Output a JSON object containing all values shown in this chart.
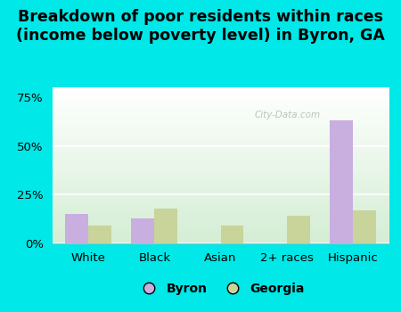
{
  "title": "Breakdown of poor residents within races\n(income below poverty level) in Byron, GA",
  "categories": [
    "White",
    "Black",
    "Asian",
    "2+ races",
    "Hispanic"
  ],
  "byron_values": [
    15,
    13,
    0,
    0,
    63
  ],
  "georgia_values": [
    9,
    18,
    9,
    14,
    17
  ],
  "byron_color": "#c9aee0",
  "georgia_color": "#c8d49a",
  "bar_width": 0.35,
  "ylim": [
    0,
    80
  ],
  "yticks": [
    0,
    25,
    50,
    75
  ],
  "yticklabels": [
    "0%",
    "25%",
    "50%",
    "75%"
  ],
  "bg_top_left": "#d4edba",
  "bg_top_right": "#ffffff",
  "bg_bottom_left": "#d4edba",
  "bg_bottom_right": "#e8f5e8",
  "outer_bg": "#00e8e8",
  "legend_byron": "Byron",
  "legend_georgia": "Georgia",
  "title_fontsize": 12.5,
  "tick_fontsize": 9.5,
  "watermark": "City-Data.com"
}
